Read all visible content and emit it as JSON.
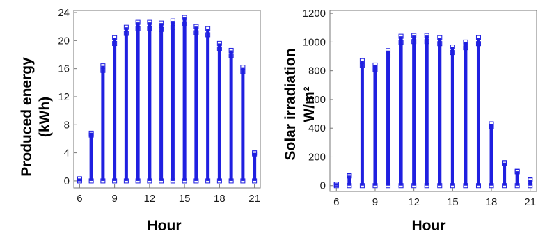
{
  "colors": {
    "marker": "#1f1fe0",
    "axis": "#777777",
    "text": "#000000"
  },
  "chart_data": [
    {
      "type": "scatter",
      "marker": "open-square",
      "xlabel": "Hour",
      "ylabel_lines": [
        "Produced energy",
        "(kWh)"
      ],
      "xlim": [
        5.5,
        21.5
      ],
      "ylim": [
        -1,
        24.3
      ],
      "xticks": [
        6,
        9,
        12,
        15,
        18,
        21
      ],
      "yticks": [
        0,
        4,
        8,
        12,
        16,
        20,
        24
      ],
      "columns": [
        {
          "hour": 6,
          "min": 0,
          "max": 0.3
        },
        {
          "hour": 7,
          "min": 0,
          "max": 6.8
        },
        {
          "hour": 8,
          "min": 0,
          "max": 16.4
        },
        {
          "hour": 9,
          "min": 0,
          "max": 20.4
        },
        {
          "hour": 10,
          "min": 0,
          "max": 21.9
        },
        {
          "hour": 11,
          "min": 0,
          "max": 22.6
        },
        {
          "hour": 12,
          "min": 0,
          "max": 22.6
        },
        {
          "hour": 13,
          "min": 0,
          "max": 22.5
        },
        {
          "hour": 14,
          "min": 0,
          "max": 22.8
        },
        {
          "hour": 15,
          "min": 0,
          "max": 23.3
        },
        {
          "hour": 16,
          "min": 0,
          "max": 22.0
        },
        {
          "hour": 17,
          "min": 0,
          "max": 21.7
        },
        {
          "hour": 18,
          "min": 0,
          "max": 19.6
        },
        {
          "hour": 19,
          "min": 0,
          "max": 18.6
        },
        {
          "hour": 20,
          "min": 0,
          "max": 16.2
        },
        {
          "hour": 21,
          "min": 0,
          "max": 4.0
        }
      ]
    },
    {
      "type": "scatter",
      "marker": "open-square",
      "xlabel": "Hour",
      "ylabel_lines": [
        "Solar irradiation",
        "W/m²"
      ],
      "xlim": [
        5.5,
        21.5
      ],
      "ylim": [
        -40,
        1220
      ],
      "xticks": [
        6,
        9,
        12,
        15,
        18,
        21
      ],
      "yticks": [
        0,
        200,
        400,
        600,
        800,
        1000,
        1200
      ],
      "columns": [
        {
          "hour": 6,
          "min": 0,
          "max": 10
        },
        {
          "hour": 7,
          "min": 0,
          "max": 70
        },
        {
          "hour": 8,
          "min": 0,
          "max": 870
        },
        {
          "hour": 9,
          "min": 0,
          "max": 840
        },
        {
          "hour": 10,
          "min": 0,
          "max": 940
        },
        {
          "hour": 11,
          "min": 0,
          "max": 1040
        },
        {
          "hour": 12,
          "min": 0,
          "max": 1045
        },
        {
          "hour": 13,
          "min": 0,
          "max": 1045
        },
        {
          "hour": 14,
          "min": 0,
          "max": 1030
        },
        {
          "hour": 15,
          "min": 0,
          "max": 965
        },
        {
          "hour": 16,
          "min": 0,
          "max": 1000
        },
        {
          "hour": 17,
          "min": 0,
          "max": 1030
        },
        {
          "hour": 18,
          "min": 0,
          "max": 430
        },
        {
          "hour": 19,
          "min": 0,
          "max": 160
        },
        {
          "hour": 20,
          "min": 0,
          "max": 100
        },
        {
          "hour": 21,
          "min": 0,
          "max": 40
        }
      ]
    }
  ]
}
